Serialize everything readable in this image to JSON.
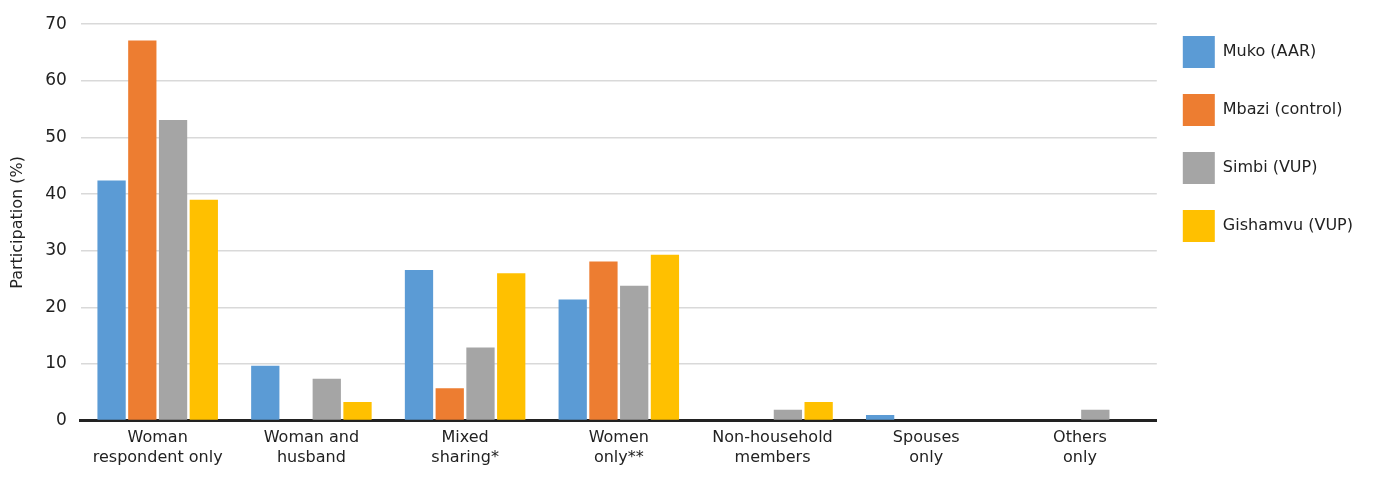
{
  "chart_data": {
    "type": "bar",
    "ylabel": "Participation (%)",
    "categories": [
      "Woman respondent only",
      "Woman and husband",
      "Mixed sharing*",
      "Women only**",
      "Non-household members",
      "Spouses only",
      "Others only"
    ],
    "series": [
      {
        "name": "Muko (AAR)",
        "color": "#5b9bd5",
        "values": [
          42.4,
          9.7,
          26.6,
          21.4,
          0,
          1.0,
          0
        ]
      },
      {
        "name": "Mbazi (control)",
        "color": "#ed7d31",
        "values": [
          67.1,
          0,
          5.7,
          28.1,
          0,
          0,
          0
        ]
      },
      {
        "name": "Simbi (VUP)",
        "color": "#a5a5a5",
        "values": [
          53.1,
          7.4,
          12.9,
          23.8,
          1.9,
          0,
          1.9
        ]
      },
      {
        "name": "Gishamvu (VUP)",
        "color": "#ffc000",
        "values": [
          39.0,
          3.3,
          26.0,
          29.3,
          3.3,
          0,
          0
        ]
      }
    ],
    "ylim": [
      0,
      70
    ],
    "yticks": [
      0,
      10,
      20,
      30,
      40,
      50,
      60,
      70
    ],
    "grid": "y",
    "legend": "right"
  }
}
